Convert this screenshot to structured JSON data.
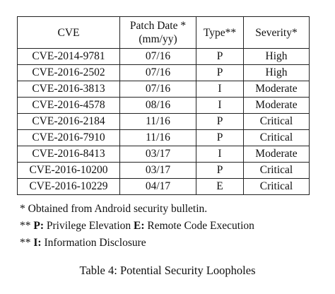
{
  "table": {
    "headers": {
      "cve": "CVE",
      "patch_date_line1": "Patch Date *",
      "patch_date_line2": "(mm/yy)",
      "type": "Type**",
      "severity": "Severity*"
    },
    "rows": [
      {
        "cve": "CVE-2014-9781",
        "date": "07/16",
        "type": "P",
        "severity": "High"
      },
      {
        "cve": "CVE-2016-2502",
        "date": "07/16",
        "type": "P",
        "severity": "High"
      },
      {
        "cve": "CVE-2016-3813",
        "date": "07/16",
        "type": "I",
        "severity": "Moderate"
      },
      {
        "cve": "CVE-2016-4578",
        "date": "08/16",
        "type": "I",
        "severity": "Moderate"
      },
      {
        "cve": "CVE-2016-2184",
        "date": "11/16",
        "type": "P",
        "severity": "Critical"
      },
      {
        "cve": "CVE-2016-7910",
        "date": "11/16",
        "type": "P",
        "severity": "Critical"
      },
      {
        "cve": "CVE-2016-8413",
        "date": "03/17",
        "type": "I",
        "severity": "Moderate"
      },
      {
        "cve": "CVE-2016-10200",
        "date": "03/17",
        "type": "P",
        "severity": "Critical"
      },
      {
        "cve": "CVE-2016-10229",
        "date": "04/17",
        "type": "E",
        "severity": "Critical"
      }
    ]
  },
  "notes": {
    "note1": "* Obtained from Android security bulletin.",
    "note2_prefix": "** ",
    "note2_p_key": "P:",
    "note2_p_text": " Privilege Elevation ",
    "note2_e_key": "E:",
    "note2_e_text": " Remote Code Execution",
    "note3_prefix": "** ",
    "note3_i_key": "I:",
    "note3_i_text": " Information Disclosure"
  },
  "caption": "Table 4: Potential Security Loopholes"
}
